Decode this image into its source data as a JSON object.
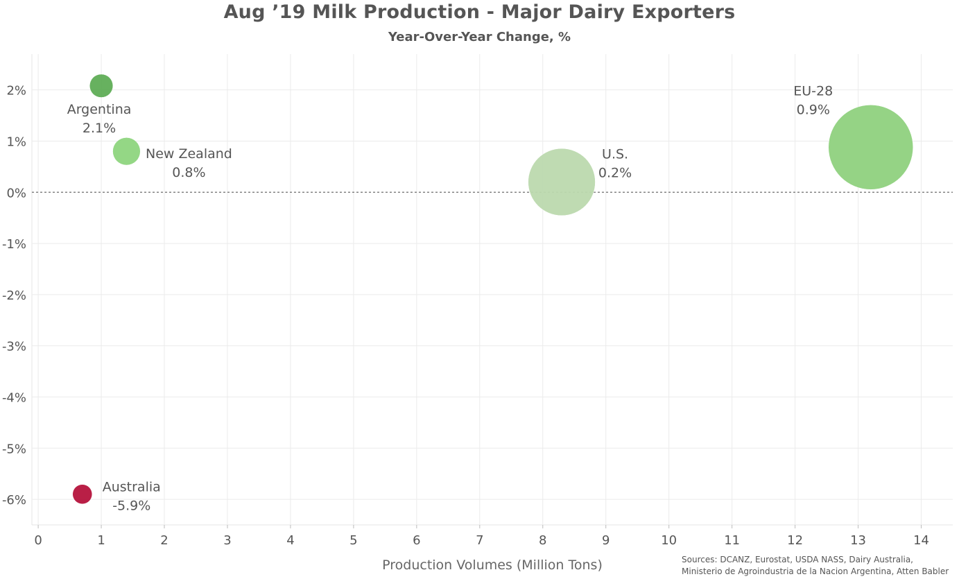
{
  "chart_data": {
    "type": "scatter",
    "title": "Aug ’19 Milk Production - Major Dairy Exporters",
    "subtitle": "Year-Over-Year Change, %",
    "xlabel": "Production Volumes (Million Tons)",
    "ylabel": "",
    "xlim": [
      -0.1,
      14.5
    ],
    "ylim": [
      -6.5,
      2.7
    ],
    "x_ticks": [
      "0",
      "1",
      "2",
      "3",
      "4",
      "5",
      "6",
      "7",
      "8",
      "9",
      "10",
      "11",
      "12",
      "13",
      "14"
    ],
    "y_ticks": [
      "2%",
      "1%",
      "0%",
      "-1%",
      "-2%",
      "-3%",
      "-4%",
      "-5%",
      "-6%"
    ],
    "grid": true,
    "reference_line": {
      "y": 0,
      "style": "dashed"
    },
    "points": [
      {
        "name": "Argentina",
        "label": "2.1%",
        "x": 1.0,
        "y": 2.08,
        "color": "#5fad56"
      },
      {
        "name": "New Zealand",
        "label": "0.8%",
        "x": 1.4,
        "y": 0.8,
        "color": "#8ed57e"
      },
      {
        "name": "U.S.",
        "label": "0.2%",
        "x": 8.3,
        "y": 0.2,
        "color": "#bcd9ae"
      },
      {
        "name": "EU-28",
        "label": "0.9%",
        "x": 13.2,
        "y": 0.88,
        "color": "#8fd17e"
      },
      {
        "name": "Australia",
        "label": "-5.9%",
        "x": 0.7,
        "y": -5.9,
        "color": "#b5133c"
      }
    ],
    "source": "Sources: DCANZ, Eurostat, USDA NASS, Dairy Australia,\nMinisterio de Agroindustria de la Nacion Argentina, Atten Babler"
  }
}
